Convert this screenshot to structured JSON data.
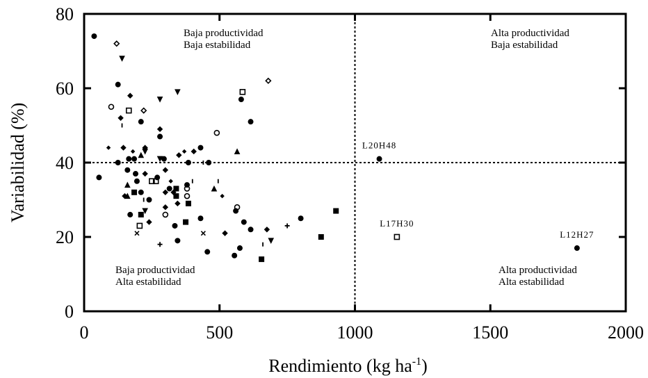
{
  "chart_data": {
    "type": "scatter",
    "xlabel": "Rendimiento (kg ha",
    "xlabel_superscript": "-1",
    "xlabel_suffix": ")",
    "ylabel": "Variabilidad (%)",
    "xlim": [
      0,
      2000
    ],
    "ylim": [
      0,
      80
    ],
    "x_ticks": [
      0,
      500,
      1000,
      1500,
      2000
    ],
    "y_ticks": [
      0,
      20,
      40,
      60,
      80
    ],
    "x_tick_labels": [
      "0",
      "500",
      "1000",
      "1500",
      "2000"
    ],
    "y_tick_labels": [
      "0",
      "20",
      "40",
      "60",
      "80"
    ],
    "grid": false,
    "reference_lines": {
      "x": 1000,
      "y": 40,
      "style": "dotted"
    },
    "quadrant_labels": {
      "top_left": [
        "Baja productividad",
        "Baja estabilidad"
      ],
      "top_right": [
        "Alta productividad",
        "Baja estabilidad"
      ],
      "bottom_left": [
        "Baja productividad",
        "Alta estabilidad"
      ],
      "bottom_right": [
        "Alta productividad",
        "Alta estabilidad"
      ]
    },
    "labeled_points": [
      {
        "label": "L20H48",
        "x": 1090,
        "y": 41,
        "marker": "circle"
      },
      {
        "label": "L17H30",
        "x": 1155,
        "y": 20,
        "marker": "square-open"
      },
      {
        "label": "L12H27",
        "x": 1820,
        "y": 17,
        "marker": "circle"
      }
    ],
    "points": [
      {
        "x": 37,
        "y": 74,
        "m": "circle"
      },
      {
        "x": 120,
        "y": 72,
        "m": "diamond-open"
      },
      {
        "x": 140,
        "y": 68,
        "m": "triangle-down"
      },
      {
        "x": 100,
        "y": 55,
        "m": "circle-open"
      },
      {
        "x": 125,
        "y": 61,
        "m": "circle"
      },
      {
        "x": 170,
        "y": 58,
        "m": "diamond"
      },
      {
        "x": 165,
        "y": 54,
        "m": "square-open"
      },
      {
        "x": 220,
        "y": 54,
        "m": "diamond-open"
      },
      {
        "x": 210,
        "y": 51,
        "m": "circle"
      },
      {
        "x": 135,
        "y": 52,
        "m": "diamond"
      },
      {
        "x": 140,
        "y": 50,
        "m": "dash"
      },
      {
        "x": 280,
        "y": 57,
        "m": "triangle-down"
      },
      {
        "x": 345,
        "y": 59,
        "m": "triangle-down"
      },
      {
        "x": 585,
        "y": 59,
        "m": "square-open"
      },
      {
        "x": 580,
        "y": 57,
        "m": "circle"
      },
      {
        "x": 680,
        "y": 62,
        "m": "diamond-open"
      },
      {
        "x": 615,
        "y": 51,
        "m": "circle"
      },
      {
        "x": 280,
        "y": 49,
        "m": "diamond"
      },
      {
        "x": 280,
        "y": 47,
        "m": "circle"
      },
      {
        "x": 490,
        "y": 48,
        "m": "circle-open"
      },
      {
        "x": 90,
        "y": 44,
        "m": "star"
      },
      {
        "x": 145,
        "y": 44,
        "m": "diamond"
      },
      {
        "x": 180,
        "y": 43,
        "m": "star"
      },
      {
        "x": 225,
        "y": 44,
        "m": "diamond"
      },
      {
        "x": 225,
        "y": 43,
        "m": "triangle-down"
      },
      {
        "x": 370,
        "y": 43,
        "m": "star"
      },
      {
        "x": 405,
        "y": 43,
        "m": "diamond"
      },
      {
        "x": 430,
        "y": 44,
        "m": "circle"
      },
      {
        "x": 565,
        "y": 43,
        "m": "triangle"
      },
      {
        "x": 165,
        "y": 41,
        "m": "circle"
      },
      {
        "x": 185,
        "y": 41,
        "m": "circle"
      },
      {
        "x": 210,
        "y": 42,
        "m": "triangle"
      },
      {
        "x": 280,
        "y": 41,
        "m": "triangle-down"
      },
      {
        "x": 295,
        "y": 41,
        "m": "circle"
      },
      {
        "x": 350,
        "y": 42,
        "m": "diamond"
      },
      {
        "x": 440,
        "y": 40,
        "m": "dash"
      },
      {
        "x": 460,
        "y": 40,
        "m": "circle"
      },
      {
        "x": 385,
        "y": 40,
        "m": "circle"
      },
      {
        "x": 125,
        "y": 40,
        "m": "circle"
      },
      {
        "x": 55,
        "y": 36,
        "m": "circle"
      },
      {
        "x": 160,
        "y": 38,
        "m": "circle"
      },
      {
        "x": 190,
        "y": 37,
        "m": "circle"
      },
      {
        "x": 225,
        "y": 37,
        "m": "diamond"
      },
      {
        "x": 300,
        "y": 38,
        "m": "diamond"
      },
      {
        "x": 320,
        "y": 35,
        "m": "star"
      },
      {
        "x": 270,
        "y": 36,
        "m": "circle"
      },
      {
        "x": 250,
        "y": 35,
        "m": "square-open"
      },
      {
        "x": 265,
        "y": 35,
        "m": "square-open"
      },
      {
        "x": 380,
        "y": 34,
        "m": "circle"
      },
      {
        "x": 400,
        "y": 35,
        "m": "dash"
      },
      {
        "x": 495,
        "y": 35,
        "m": "dash"
      },
      {
        "x": 160,
        "y": 34,
        "m": "triangle"
      },
      {
        "x": 195,
        "y": 35,
        "m": "circle"
      },
      {
        "x": 315,
        "y": 33,
        "m": "circle"
      },
      {
        "x": 340,
        "y": 33,
        "m": "square"
      },
      {
        "x": 380,
        "y": 33,
        "m": "circle-open"
      },
      {
        "x": 480,
        "y": 33,
        "m": "triangle"
      },
      {
        "x": 160,
        "y": 31,
        "m": "triangle"
      },
      {
        "x": 150,
        "y": 31,
        "m": "diamond"
      },
      {
        "x": 185,
        "y": 32,
        "m": "square"
      },
      {
        "x": 210,
        "y": 32,
        "m": "circle"
      },
      {
        "x": 300,
        "y": 32,
        "m": "diamond"
      },
      {
        "x": 330,
        "y": 32,
        "m": "diamond"
      },
      {
        "x": 340,
        "y": 31,
        "m": "square"
      },
      {
        "x": 380,
        "y": 31,
        "m": "circle-open"
      },
      {
        "x": 510,
        "y": 31,
        "m": "star"
      },
      {
        "x": 220,
        "y": 30,
        "m": "dash"
      },
      {
        "x": 240,
        "y": 30,
        "m": "circle"
      },
      {
        "x": 345,
        "y": 29,
        "m": "diamond"
      },
      {
        "x": 385,
        "y": 29,
        "m": "square"
      },
      {
        "x": 300,
        "y": 28,
        "m": "diamond"
      },
      {
        "x": 565,
        "y": 28,
        "m": "circle-open"
      },
      {
        "x": 560,
        "y": 27,
        "m": "circle"
      },
      {
        "x": 225,
        "y": 27,
        "m": "triangle-down"
      },
      {
        "x": 170,
        "y": 26,
        "m": "circle"
      },
      {
        "x": 210,
        "y": 26,
        "m": "square"
      },
      {
        "x": 300,
        "y": 26,
        "m": "circle-open"
      },
      {
        "x": 930,
        "y": 27,
        "m": "square"
      },
      {
        "x": 430,
        "y": 25,
        "m": "circle"
      },
      {
        "x": 800,
        "y": 25,
        "m": "circle"
      },
      {
        "x": 240,
        "y": 24,
        "m": "diamond"
      },
      {
        "x": 375,
        "y": 24,
        "m": "square"
      },
      {
        "x": 590,
        "y": 24,
        "m": "circle"
      },
      {
        "x": 205,
        "y": 23,
        "m": "square-open"
      },
      {
        "x": 335,
        "y": 23,
        "m": "circle"
      },
      {
        "x": 750,
        "y": 23,
        "m": "plus"
      },
      {
        "x": 615,
        "y": 22,
        "m": "circle"
      },
      {
        "x": 675,
        "y": 22,
        "m": "diamond"
      },
      {
        "x": 195,
        "y": 21,
        "m": "cross"
      },
      {
        "x": 440,
        "y": 21,
        "m": "cross"
      },
      {
        "x": 520,
        "y": 21,
        "m": "diamond"
      },
      {
        "x": 875,
        "y": 20,
        "m": "square"
      },
      {
        "x": 690,
        "y": 19,
        "m": "triangle-down"
      },
      {
        "x": 345,
        "y": 19,
        "m": "circle"
      },
      {
        "x": 280,
        "y": 18,
        "m": "plus"
      },
      {
        "x": 660,
        "y": 18,
        "m": "dash"
      },
      {
        "x": 575,
        "y": 17,
        "m": "circle"
      },
      {
        "x": 455,
        "y": 16,
        "m": "circle"
      },
      {
        "x": 555,
        "y": 15,
        "m": "circle"
      },
      {
        "x": 655,
        "y": 14,
        "m": "square"
      }
    ]
  }
}
